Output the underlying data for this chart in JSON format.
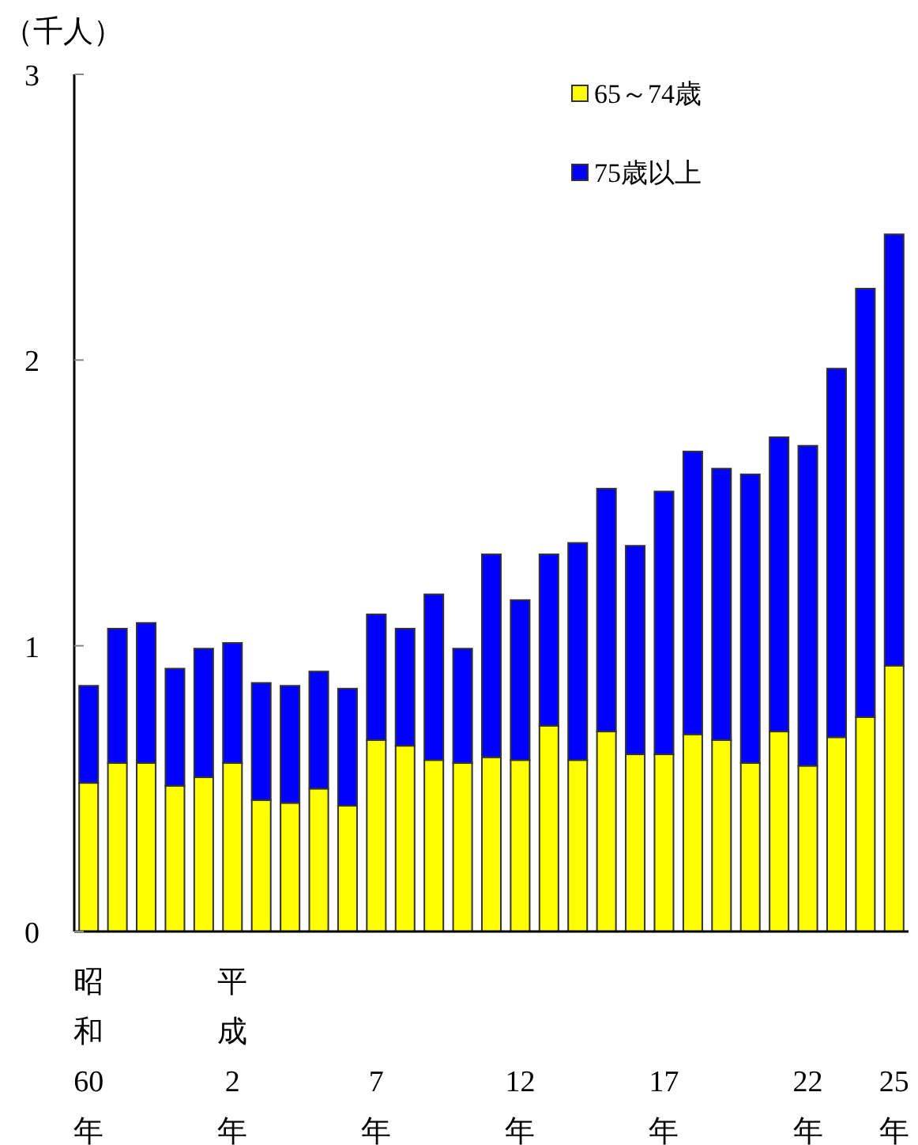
{
  "chart_data": {
    "type": "bar",
    "stacked": true,
    "ylabel": "（千人）",
    "categories": [
      "昭和60年",
      null,
      null,
      null,
      null,
      "平成2年",
      null,
      null,
      null,
      null,
      "7年",
      null,
      null,
      null,
      null,
      "12年",
      null,
      null,
      null,
      null,
      "17年",
      null,
      null,
      null,
      null,
      "22年",
      null,
      null,
      "25年"
    ],
    "series": [
      {
        "name": "65～74歳",
        "color": "#ffff00",
        "values": [
          0.52,
          0.59,
          0.59,
          0.51,
          0.54,
          0.59,
          0.46,
          0.45,
          0.5,
          0.44,
          0.67,
          0.65,
          0.6,
          0.59,
          0.61,
          0.6,
          0.72,
          0.6,
          0.7,
          0.62,
          0.62,
          0.69,
          0.67,
          0.59,
          0.7,
          0.58,
          0.68,
          0.75,
          0.93
        ]
      },
      {
        "name": "75歳以上",
        "color": "#0000ff",
        "values": [
          0.34,
          0.47,
          0.49,
          0.41,
          0.45,
          0.42,
          0.41,
          0.41,
          0.41,
          0.41,
          0.44,
          0.41,
          0.58,
          0.4,
          0.71,
          0.56,
          0.6,
          0.76,
          0.85,
          0.73,
          0.92,
          0.99,
          0.95,
          1.01,
          1.03,
          1.12,
          1.29,
          1.5,
          1.51
        ]
      }
    ],
    "ylim": [
      0,
      3
    ],
    "yticks": [
      0,
      1,
      2,
      3
    ],
    "grid": false,
    "legend": "top right"
  }
}
